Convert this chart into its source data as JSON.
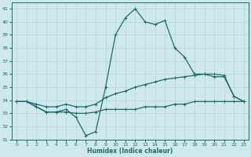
{
  "xlabel": "Humidex (Indice chaleur)",
  "xlim": [
    -0.5,
    23.5
  ],
  "ylim": [
    31,
    41.5
  ],
  "yticks": [
    31,
    32,
    33,
    34,
    35,
    36,
    37,
    38,
    39,
    40,
    41
  ],
  "xticks": [
    0,
    1,
    2,
    3,
    4,
    5,
    6,
    7,
    8,
    9,
    10,
    11,
    12,
    13,
    14,
    15,
    16,
    17,
    18,
    19,
    20,
    21,
    22,
    23
  ],
  "bg_color": "#cfe8ec",
  "line_color": "#1c6b6b",
  "grid_color": "#b0d8de",
  "series1_x": [
    0,
    1,
    2,
    3,
    4,
    5,
    6,
    7,
    8,
    9,
    10,
    11,
    12,
    13,
    14,
    15,
    16,
    17,
    18,
    19,
    20,
    21,
    22,
    23
  ],
  "series1_y": [
    33.9,
    33.9,
    33.5,
    33.1,
    33.1,
    33.1,
    33.0,
    33.0,
    33.1,
    33.3,
    33.3,
    33.3,
    33.3,
    33.5,
    33.5,
    33.5,
    33.7,
    33.7,
    33.9,
    33.9,
    33.9,
    33.9,
    33.9,
    33.9
  ],
  "series2_x": [
    0,
    1,
    2,
    3,
    4,
    5,
    6,
    7,
    8,
    9,
    10,
    11,
    12,
    13,
    14,
    15,
    16,
    17,
    18,
    19,
    20,
    21,
    22,
    23
  ],
  "series2_y": [
    33.9,
    33.9,
    33.7,
    33.5,
    33.5,
    33.7,
    33.5,
    33.5,
    33.7,
    34.2,
    34.5,
    34.7,
    35.0,
    35.2,
    35.4,
    35.6,
    35.7,
    35.8,
    35.9,
    36.0,
    36.0,
    35.9,
    34.3,
    33.9
  ],
  "series3_x": [
    0,
    1,
    2,
    3,
    4,
    5,
    6,
    7,
    8,
    9,
    10,
    11,
    12,
    13,
    14,
    15,
    16,
    17,
    18,
    19,
    20,
    21,
    22,
    23
  ],
  "series3_y": [
    33.9,
    33.9,
    33.5,
    33.1,
    33.1,
    33.3,
    32.7,
    31.3,
    31.6,
    35.0,
    39.0,
    40.3,
    41.0,
    40.0,
    39.8,
    40.1,
    38.0,
    37.3,
    36.0,
    36.0,
    35.8,
    35.8,
    34.3,
    33.9
  ]
}
